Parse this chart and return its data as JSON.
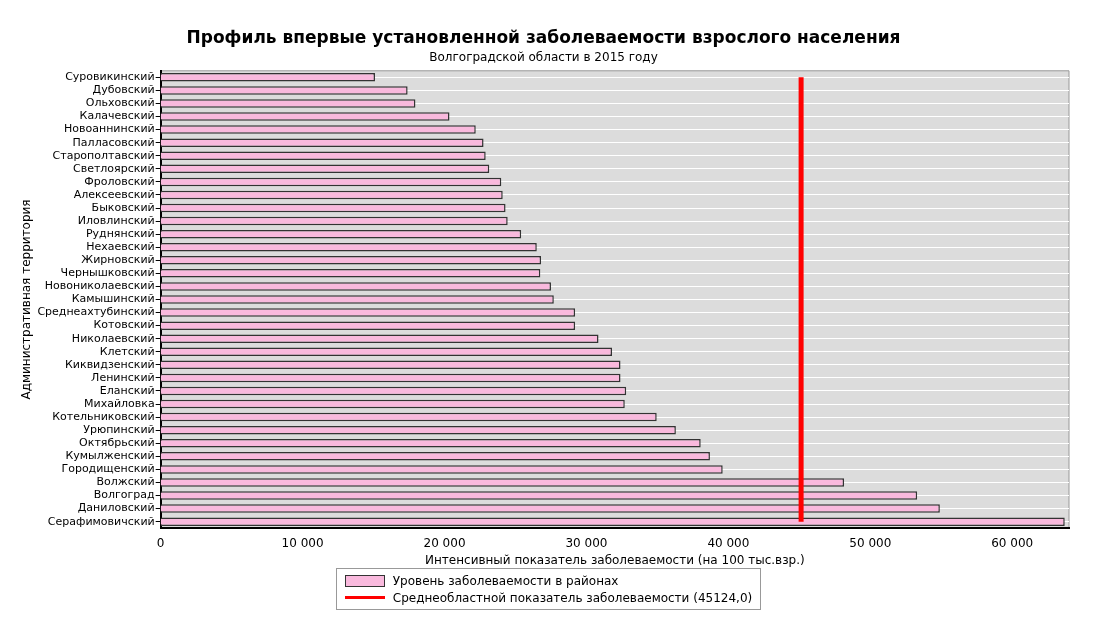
{
  "chart_data": {
    "type": "bar",
    "orientation": "horizontal",
    "title": "Профиль впервые установленной заболеваемости взрослого населения",
    "subtitle": "Волгоградской области в 2015 году",
    "xlabel": "Интенсивный показатель заболеваемости (на 100 тыс.взр.)",
    "ylabel": "Административная территория",
    "categories": [
      "Суровикинский",
      "Дубовский",
      "Ольховский",
      "Калачевский",
      "Новоаннинский",
      "Палласовский",
      "Старополтавский",
      "Светлоярский",
      "Фроловский",
      "Алексеевский",
      "Быковский",
      "Иловлинский",
      "Руднянский",
      "Нехаевский",
      "Жирновский",
      "Чернышковский",
      "Новониколаевский",
      "Камышинский",
      "Среднеахтубинский",
      "Котовский",
      "Николаевский",
      "Клетский",
      "Киквидзенский",
      "Ленинский",
      "Еланский",
      "Михайловка",
      "Котельниковский",
      "Урюпинский",
      "Октябрьский",
      "Кумылженский",
      "Городищенский",
      "Волжский",
      "Волгоград",
      "Даниловский",
      "Серафимовичский"
    ],
    "series": [
      {
        "name": "Уровень заболеваемости в районах",
        "color": "#f9b9dd",
        "values": [
          15100,
          17400,
          17950,
          20350,
          22200,
          22750,
          22900,
          23150,
          24000,
          24100,
          24300,
          24450,
          25400,
          26500,
          26800,
          26750,
          27500,
          27700,
          29200,
          29200,
          30850,
          31800,
          32400,
          32400,
          32800,
          32700,
          34950,
          36300,
          38050,
          38700,
          39600,
          48150,
          53300,
          54900,
          63700
        ]
      },
      {
        "type": "line",
        "name": "Среднеобластной показатель заболеваемости (45124,0)",
        "color": "#ff0000",
        "values": [
          45124,
          45124,
          45124,
          45124,
          45124,
          45124,
          45124,
          45124,
          45124,
          45124,
          45124,
          45124,
          45124,
          45124,
          45124,
          45124,
          45124,
          45124,
          45124,
          45124,
          45124,
          45124,
          45124,
          45124,
          45124,
          45124,
          45124,
          45124,
          45124,
          45124,
          45124,
          45124,
          45124,
          45124,
          45124
        ]
      }
    ],
    "xlim": [
      0,
      64000
    ],
    "xticks": [
      {
        "value": 0,
        "label": "0"
      },
      {
        "value": 10000,
        "label": "10 000"
      },
      {
        "value": 20000,
        "label": "20 000"
      },
      {
        "value": 30000,
        "label": "30 000"
      },
      {
        "value": 40000,
        "label": "40 000"
      },
      {
        "value": 50000,
        "label": "50 000"
      },
      {
        "value": 60000,
        "label": "60 000"
      }
    ],
    "grid": "y",
    "legend": "bottom"
  }
}
